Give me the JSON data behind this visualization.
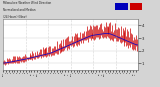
{
  "title_line1": "Milwaukee Weather Wind Direction",
  "title_line2": "Normalized and Median",
  "title_line3": "(24 Hours) (New)",
  "background_color": "#d4d4d4",
  "plot_bg_color": "#ffffff",
  "bar_color": "#cc0000",
  "median_color": "#0000cc",
  "ylim": [
    0.5,
    4.5
  ],
  "yticks": [
    1,
    2,
    3,
    4
  ],
  "n_points": 144,
  "legend_blue": "#0000bb",
  "legend_red": "#cc0000"
}
